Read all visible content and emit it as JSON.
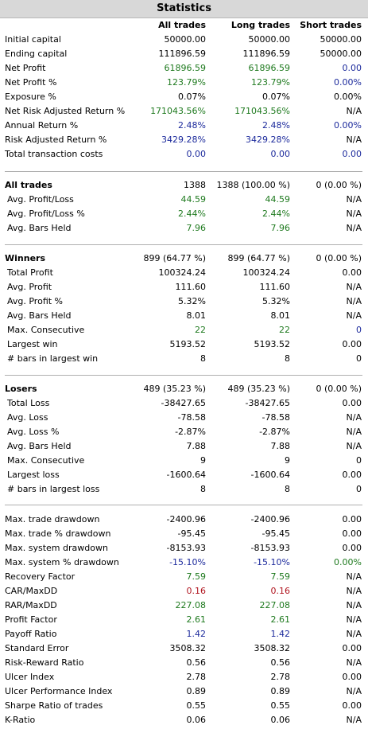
{
  "title": "Statistics",
  "colors": {
    "black": "#000000",
    "green": "#1f7a1f",
    "blue": "#1c2a9c",
    "red": "#b0141e",
    "header_bg": "#d8d8d8"
  },
  "columns": [
    "All trades",
    "Long trades",
    "Short trades"
  ],
  "sections": [
    {
      "rows": [
        {
          "label": "Initial capital",
          "values": [
            "50000.00",
            "50000.00",
            "50000.00"
          ],
          "colors": [
            "black",
            "black",
            "black"
          ]
        },
        {
          "label": "Ending capital",
          "values": [
            "111896.59",
            "111896.59",
            "50000.00"
          ],
          "colors": [
            "black",
            "black",
            "black"
          ]
        },
        {
          "label": "Net Profit",
          "values": [
            "61896.59",
            "61896.59",
            "0.00"
          ],
          "colors": [
            "green",
            "green",
            "blue"
          ]
        },
        {
          "label": "Net Profit %",
          "values": [
            "123.79%",
            "123.79%",
            "0.00%"
          ],
          "colors": [
            "green",
            "green",
            "blue"
          ]
        },
        {
          "label": "Exposure %",
          "values": [
            "0.07%",
            "0.07%",
            "0.00%"
          ],
          "colors": [
            "black",
            "black",
            "black"
          ]
        },
        {
          "label": "Net Risk Adjusted Return %",
          "values": [
            "171043.56%",
            "171043.56%",
            "N/A"
          ],
          "colors": [
            "green",
            "green",
            "black"
          ]
        },
        {
          "label": "Annual Return %",
          "values": [
            "2.48%",
            "2.48%",
            "0.00%"
          ],
          "colors": [
            "blue",
            "blue",
            "blue"
          ]
        },
        {
          "label": "Risk Adjusted Return %",
          "values": [
            "3429.28%",
            "3429.28%",
            "N/A"
          ],
          "colors": [
            "blue",
            "blue",
            "black"
          ]
        },
        {
          "label": "Total transaction costs",
          "values": [
            "0.00",
            "0.00",
            "0.00"
          ],
          "colors": [
            "blue",
            "blue",
            "blue"
          ]
        }
      ]
    },
    {
      "header": {
        "label": "All trades",
        "values": [
          "1388",
          "1388 (100.00 %)",
          "0 (0.00 %)"
        ]
      },
      "rows": [
        {
          "label": "Avg. Profit/Loss",
          "values": [
            "44.59",
            "44.59",
            "N/A"
          ],
          "colors": [
            "green",
            "green",
            "black"
          ]
        },
        {
          "label": "Avg. Profit/Loss %",
          "values": [
            "2.44%",
            "2.44%",
            "N/A"
          ],
          "colors": [
            "green",
            "green",
            "black"
          ]
        },
        {
          "label": "Avg. Bars Held",
          "values": [
            "7.96",
            "7.96",
            "N/A"
          ],
          "colors": [
            "green",
            "green",
            "black"
          ]
        }
      ]
    },
    {
      "header": {
        "label": "Winners",
        "values": [
          "899 (64.77 %)",
          "899 (64.77 %)",
          "0 (0.00 %)"
        ]
      },
      "rows": [
        {
          "label": "Total Profit",
          "values": [
            "100324.24",
            "100324.24",
            "0.00"
          ],
          "colors": [
            "black",
            "black",
            "black"
          ]
        },
        {
          "label": "Avg. Profit",
          "values": [
            "111.60",
            "111.60",
            "N/A"
          ],
          "colors": [
            "black",
            "black",
            "black"
          ]
        },
        {
          "label": "Avg. Profit %",
          "values": [
            "5.32%",
            "5.32%",
            "N/A"
          ],
          "colors": [
            "black",
            "black",
            "black"
          ]
        },
        {
          "label": "Avg. Bars Held",
          "values": [
            "8.01",
            "8.01",
            "N/A"
          ],
          "colors": [
            "black",
            "black",
            "black"
          ]
        },
        {
          "label": "Max. Consecutive",
          "values": [
            "22",
            "22",
            "0"
          ],
          "colors": [
            "green",
            "green",
            "blue"
          ]
        },
        {
          "label": "Largest win",
          "values": [
            "5193.52",
            "5193.52",
            "0.00"
          ],
          "colors": [
            "black",
            "black",
            "black"
          ]
        },
        {
          "label": "# bars in largest win",
          "values": [
            "8",
            "8",
            "0"
          ],
          "colors": [
            "black",
            "black",
            "black"
          ]
        }
      ]
    },
    {
      "header": {
        "label": "Losers",
        "values": [
          "489 (35.23 %)",
          "489 (35.23 %)",
          "0 (0.00 %)"
        ]
      },
      "rows": [
        {
          "label": "Total Loss",
          "values": [
            "-38427.65",
            "-38427.65",
            "0.00"
          ],
          "colors": [
            "black",
            "black",
            "black"
          ]
        },
        {
          "label": "Avg. Loss",
          "values": [
            "-78.58",
            "-78.58",
            "N/A"
          ],
          "colors": [
            "black",
            "black",
            "black"
          ]
        },
        {
          "label": "Avg. Loss %",
          "values": [
            "-2.87%",
            "-2.87%",
            "N/A"
          ],
          "colors": [
            "black",
            "black",
            "black"
          ]
        },
        {
          "label": "Avg. Bars Held",
          "values": [
            "7.88",
            "7.88",
            "N/A"
          ],
          "colors": [
            "black",
            "black",
            "black"
          ]
        },
        {
          "label": "Max. Consecutive",
          "values": [
            "9",
            "9",
            "0"
          ],
          "colors": [
            "black",
            "black",
            "black"
          ]
        },
        {
          "label": "Largest loss",
          "values": [
            "-1600.64",
            "-1600.64",
            "0.00"
          ],
          "colors": [
            "black",
            "black",
            "black"
          ]
        },
        {
          "label": "# bars in largest loss",
          "values": [
            "8",
            "8",
            "0"
          ],
          "colors": [
            "black",
            "black",
            "black"
          ]
        }
      ]
    },
    {
      "rows": [
        {
          "label": "Max. trade drawdown",
          "values": [
            "-2400.96",
            "-2400.96",
            "0.00"
          ],
          "colors": [
            "black",
            "black",
            "black"
          ]
        },
        {
          "label": "Max. trade % drawdown",
          "values": [
            "-95.45",
            "-95.45",
            "0.00"
          ],
          "colors": [
            "black",
            "black",
            "black"
          ]
        },
        {
          "label": "Max. system drawdown",
          "values": [
            "-8153.93",
            "-8153.93",
            "0.00"
          ],
          "colors": [
            "black",
            "black",
            "black"
          ]
        },
        {
          "label": "Max. system % drawdown",
          "values": [
            "-15.10%",
            "-15.10%",
            "0.00%"
          ],
          "colors": [
            "blue",
            "blue",
            "green"
          ]
        },
        {
          "label": "Recovery Factor",
          "values": [
            "7.59",
            "7.59",
            "N/A"
          ],
          "colors": [
            "green",
            "green",
            "black"
          ]
        },
        {
          "label": "CAR/MaxDD",
          "values": [
            "0.16",
            "0.16",
            "N/A"
          ],
          "colors": [
            "red",
            "red",
            "black"
          ]
        },
        {
          "label": "RAR/MaxDD",
          "values": [
            "227.08",
            "227.08",
            "N/A"
          ],
          "colors": [
            "green",
            "green",
            "black"
          ]
        },
        {
          "label": "Profit Factor",
          "values": [
            "2.61",
            "2.61",
            "N/A"
          ],
          "colors": [
            "green",
            "green",
            "black"
          ]
        },
        {
          "label": "Payoff Ratio",
          "values": [
            "1.42",
            "1.42",
            "N/A"
          ],
          "colors": [
            "blue",
            "blue",
            "black"
          ]
        },
        {
          "label": "Standard Error",
          "values": [
            "3508.32",
            "3508.32",
            "0.00"
          ],
          "colors": [
            "black",
            "black",
            "black"
          ]
        },
        {
          "label": "Risk-Reward Ratio",
          "values": [
            "0.56",
            "0.56",
            "N/A"
          ],
          "colors": [
            "black",
            "black",
            "black"
          ]
        },
        {
          "label": "Ulcer Index",
          "values": [
            "2.78",
            "2.78",
            "0.00"
          ],
          "colors": [
            "black",
            "black",
            "black"
          ]
        },
        {
          "label": "Ulcer Performance Index",
          "values": [
            "0.89",
            "0.89",
            "N/A"
          ],
          "colors": [
            "black",
            "black",
            "black"
          ]
        },
        {
          "label": "Sharpe Ratio of trades",
          "values": [
            "0.55",
            "0.55",
            "0.00"
          ],
          "colors": [
            "black",
            "black",
            "black"
          ]
        },
        {
          "label": "K-Ratio",
          "values": [
            "0.06",
            "0.06",
            "N/A"
          ],
          "colors": [
            "black",
            "black",
            "black"
          ]
        }
      ]
    }
  ]
}
